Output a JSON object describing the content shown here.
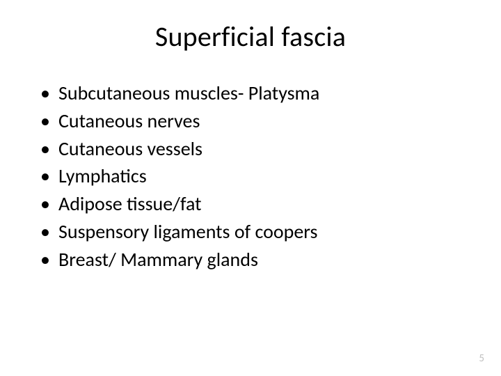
{
  "slide": {
    "title": "Superficial fascia",
    "title_fontsize": 40,
    "title_color": "#000000",
    "bullets": [
      "Subcutaneous muscles- Platysma",
      "Cutaneous nerves",
      " Cutaneous vessels",
      "Lymphatics",
      "Adipose tissue/fat",
      "Suspensory ligaments of coopers",
      "Breast/ Mammary glands"
    ],
    "bullet_fontsize": 28,
    "bullet_color": "#000000",
    "page_number": "5",
    "page_number_color": "#bfbfbf",
    "background_color": "#ffffff"
  }
}
